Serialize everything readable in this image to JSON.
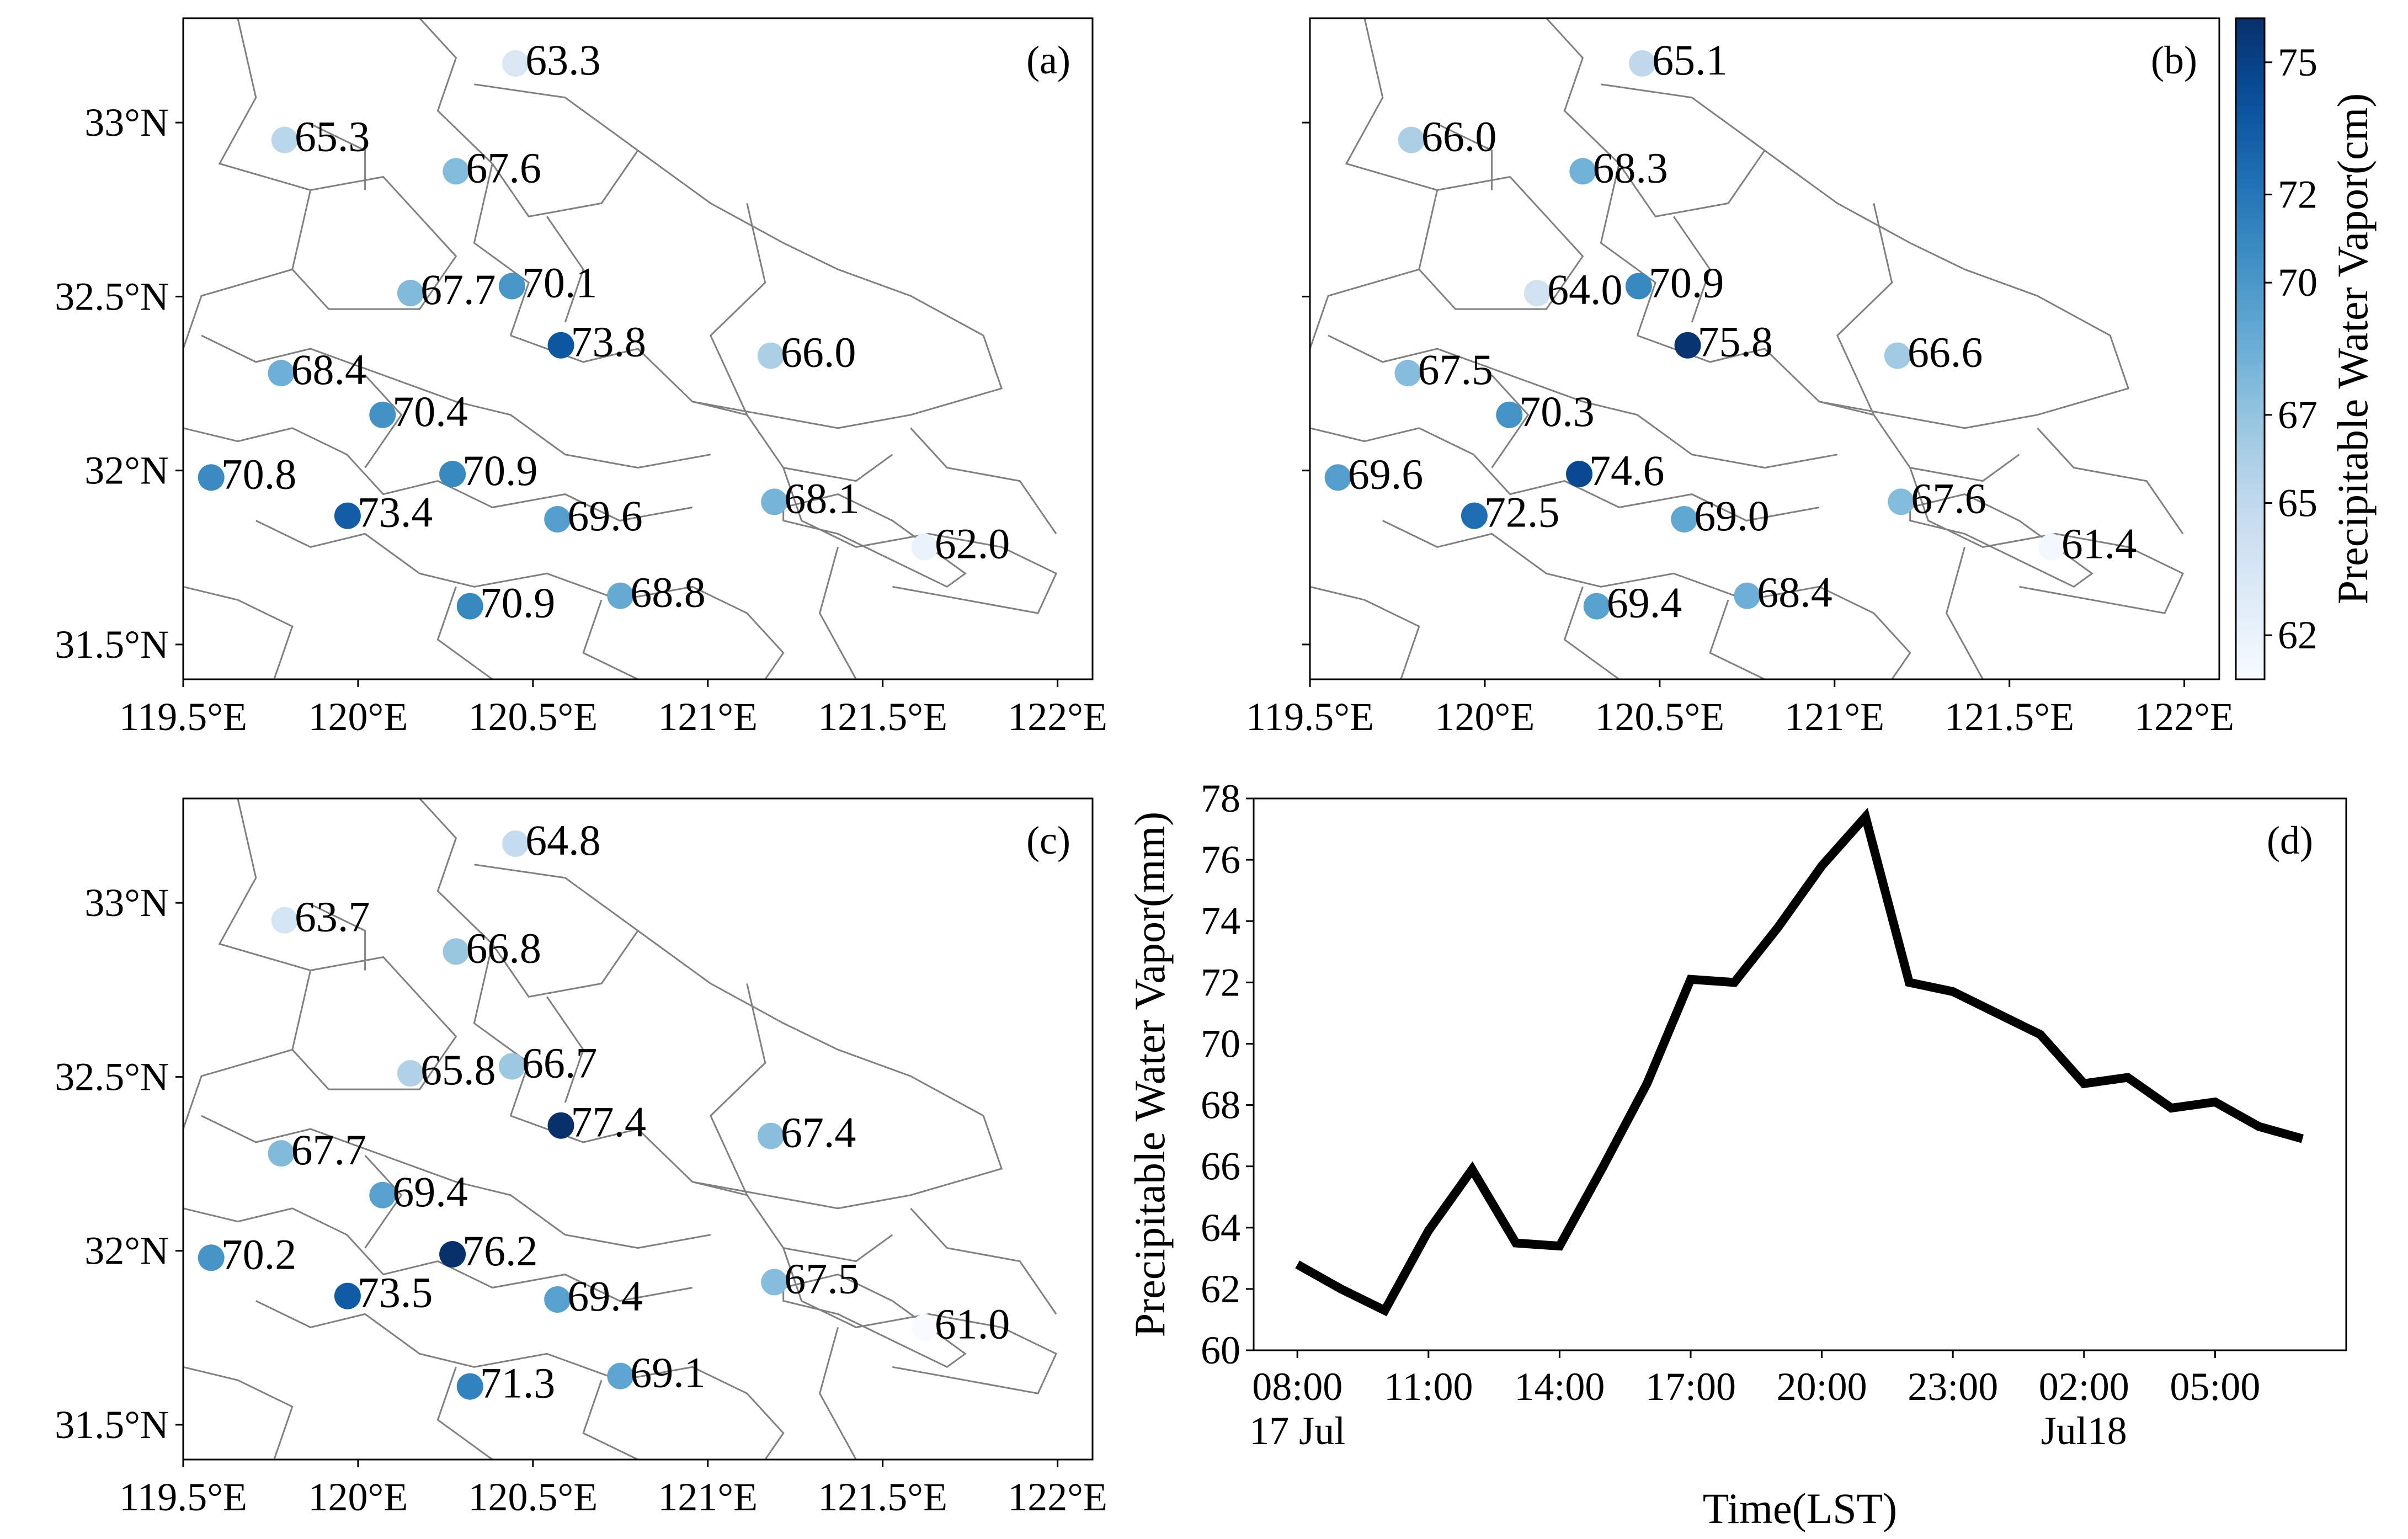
{
  "chart_data": [
    {
      "type": "scatter",
      "panel_label": "(a)",
      "xticks": [
        "119.5°E",
        "120°E",
        "120.5°E",
        "121°E",
        "121.5°E",
        "122°E"
      ],
      "yticks": [
        "33°N",
        "32.5°N",
        "32°N",
        "31.5°N"
      ],
      "xlim": [
        119.5,
        122.1
      ],
      "ylim": [
        31.4,
        33.3
      ],
      "points": [
        {
          "lon": 120.45,
          "lat": 33.17,
          "value": 63.3
        },
        {
          "lon": 119.79,
          "lat": 32.95,
          "value": 65.3
        },
        {
          "lon": 120.28,
          "lat": 32.86,
          "value": 67.6
        },
        {
          "lon": 120.15,
          "lat": 32.51,
          "value": 67.7
        },
        {
          "lon": 120.44,
          "lat": 32.53,
          "value": 70.1
        },
        {
          "lon": 120.58,
          "lat": 32.36,
          "value": 73.8
        },
        {
          "lon": 120.07,
          "lat": 32.16,
          "value": 70.4
        },
        {
          "lon": 119.78,
          "lat": 32.28,
          "value": 68.4
        },
        {
          "lon": 119.58,
          "lat": 31.98,
          "value": 70.8
        },
        {
          "lon": 119.97,
          "lat": 31.87,
          "value": 73.4
        },
        {
          "lon": 120.27,
          "lat": 31.99,
          "value": 70.9
        },
        {
          "lon": 120.57,
          "lat": 31.86,
          "value": 69.6
        },
        {
          "lon": 121.18,
          "lat": 32.33,
          "value": 66.0
        },
        {
          "lon": 121.19,
          "lat": 31.91,
          "value": 68.1
        },
        {
          "lon": 121.62,
          "lat": 31.78,
          "value": 62.0
        },
        {
          "lon": 120.32,
          "lat": 31.61,
          "value": 70.9
        },
        {
          "lon": 120.75,
          "lat": 31.64,
          "value": 68.8
        }
      ]
    },
    {
      "type": "scatter",
      "panel_label": "(b)",
      "xticks": [
        "119.5°E",
        "120°E",
        "120.5°E",
        "121°E",
        "121.5°E",
        "122°E"
      ],
      "yticks": [],
      "xlim": [
        119.5,
        122.1
      ],
      "ylim": [
        31.4,
        33.3
      ],
      "colorbar": {
        "label": "Precipitable Water Vapor(cm)",
        "ticks": [
          "62",
          "65",
          "67",
          "70",
          "72",
          "75"
        ],
        "range": [
          61.0,
          76.0
        ]
      },
      "points": [
        {
          "lon": 120.45,
          "lat": 33.17,
          "value": 65.1
        },
        {
          "lon": 119.79,
          "lat": 32.95,
          "value": 66.0
        },
        {
          "lon": 120.28,
          "lat": 32.86,
          "value": 68.3
        },
        {
          "lon": 120.15,
          "lat": 32.51,
          "value": 64.0
        },
        {
          "lon": 120.44,
          "lat": 32.53,
          "value": 70.9
        },
        {
          "lon": 120.58,
          "lat": 32.36,
          "value": 75.8
        },
        {
          "lon": 120.07,
          "lat": 32.16,
          "value": 70.3
        },
        {
          "lon": 119.78,
          "lat": 32.28,
          "value": 67.5
        },
        {
          "lon": 119.58,
          "lat": 31.98,
          "value": 69.6
        },
        {
          "lon": 119.97,
          "lat": 31.87,
          "value": 72.5
        },
        {
          "lon": 120.27,
          "lat": 31.99,
          "value": 74.6
        },
        {
          "lon": 120.57,
          "lat": 31.86,
          "value": 69.0
        },
        {
          "lon": 121.18,
          "lat": 32.33,
          "value": 66.6
        },
        {
          "lon": 121.19,
          "lat": 31.91,
          "value": 67.6
        },
        {
          "lon": 121.62,
          "lat": 31.78,
          "value": 61.4
        },
        {
          "lon": 120.32,
          "lat": 31.61,
          "value": 69.4
        },
        {
          "lon": 120.75,
          "lat": 31.64,
          "value": 68.4
        }
      ]
    },
    {
      "type": "scatter",
      "panel_label": "(c)",
      "xticks": [
        "119.5°E",
        "120°E",
        "120.5°E",
        "121°E",
        "121.5°E",
        "122°E"
      ],
      "yticks": [
        "33°N",
        "32.5°N",
        "32°N",
        "31.5°N"
      ],
      "xlim": [
        119.5,
        122.1
      ],
      "ylim": [
        31.4,
        33.3
      ],
      "points": [
        {
          "lon": 120.45,
          "lat": 33.17,
          "value": 64.8
        },
        {
          "lon": 119.79,
          "lat": 32.95,
          "value": 63.7
        },
        {
          "lon": 120.28,
          "lat": 32.86,
          "value": 66.8
        },
        {
          "lon": 120.15,
          "lat": 32.51,
          "value": 65.8
        },
        {
          "lon": 120.44,
          "lat": 32.53,
          "value": 66.7
        },
        {
          "lon": 120.58,
          "lat": 32.36,
          "value": 77.4
        },
        {
          "lon": 120.07,
          "lat": 32.16,
          "value": 69.4
        },
        {
          "lon": 119.78,
          "lat": 32.28,
          "value": 67.7
        },
        {
          "lon": 119.58,
          "lat": 31.98,
          "value": 70.2
        },
        {
          "lon": 119.97,
          "lat": 31.87,
          "value": 73.5
        },
        {
          "lon": 120.27,
          "lat": 31.99,
          "value": 76.2
        },
        {
          "lon": 120.57,
          "lat": 31.86,
          "value": 69.4
        },
        {
          "lon": 121.18,
          "lat": 32.33,
          "value": 67.4
        },
        {
          "lon": 121.19,
          "lat": 31.91,
          "value": 67.5
        },
        {
          "lon": 121.62,
          "lat": 31.78,
          "value": 61.0
        },
        {
          "lon": 120.32,
          "lat": 31.61,
          "value": 71.3
        },
        {
          "lon": 120.75,
          "lat": 31.64,
          "value": 69.1
        }
      ]
    },
    {
      "type": "line",
      "panel_label": "(d)",
      "xlabel": "Time(LST)",
      "ylabel": "Precipitable Water Vapor(mm)",
      "ylim": [
        60,
        78
      ],
      "yticks": [
        "60",
        "62",
        "64",
        "66",
        "68",
        "70",
        "72",
        "74",
        "76",
        "78"
      ],
      "xticks": [
        {
          "hour": 0,
          "line1": "08:00",
          "line2": "17 Jul"
        },
        {
          "hour": 3,
          "line1": "11:00",
          "line2": ""
        },
        {
          "hour": 6,
          "line1": "14:00",
          "line2": ""
        },
        {
          "hour": 9,
          "line1": "17:00",
          "line2": ""
        },
        {
          "hour": 12,
          "line1": "20:00",
          "line2": ""
        },
        {
          "hour": 15,
          "line1": "23:00",
          "line2": ""
        },
        {
          "hour": 18,
          "line1": "02:00",
          "line2": "Jul18"
        },
        {
          "hour": 21,
          "line1": "05:00",
          "line2": ""
        }
      ],
      "xlim": [
        -1,
        24
      ],
      "series": [
        {
          "x": [
            0,
            1,
            2,
            3,
            4,
            5,
            6,
            7,
            8,
            9,
            10,
            11,
            12,
            13,
            14,
            15,
            16,
            17,
            18,
            19,
            20,
            21,
            22,
            23
          ],
          "y": [
            62.8,
            62.0,
            61.3,
            63.9,
            65.9,
            63.5,
            63.4,
            66.0,
            68.7,
            72.1,
            72.0,
            73.8,
            75.8,
            77.4,
            72.0,
            71.7,
            71.0,
            70.3,
            68.7,
            68.9,
            67.9,
            68.1,
            67.3,
            66.9
          ]
        }
      ]
    }
  ]
}
